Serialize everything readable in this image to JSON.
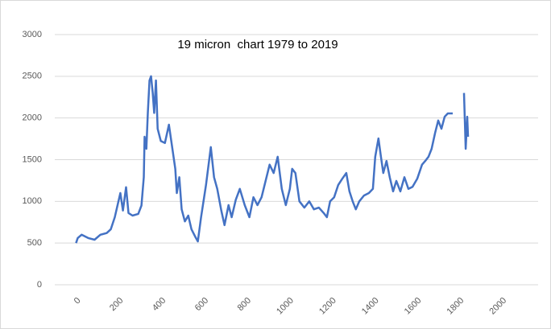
{
  "chart_data": {
    "type": "line",
    "title": "19 micron  chart 1979 to 2019",
    "x": [
      0,
      8,
      26,
      57,
      87,
      114,
      144,
      163,
      182,
      208,
      220,
      235,
      246,
      265,
      292,
      307,
      318,
      322,
      330,
      337,
      345,
      352,
      360,
      367,
      375,
      383,
      398,
      417,
      436,
      447,
      466,
      473,
      485,
      496,
      511,
      527,
      542,
      561,
      572,
      587,
      610,
      633,
      648,
      663,
      682,
      697,
      716,
      731,
      750,
      769,
      792,
      814,
      833,
      852,
      871,
      890,
      909,
      928,
      947,
      966,
      985,
      1004,
      1015,
      1030,
      1049,
      1072,
      1095,
      1117,
      1140,
      1163,
      1178,
      1193,
      1212,
      1231,
      1250,
      1269,
      1284,
      1299,
      1314,
      1330,
      1352,
      1375,
      1394,
      1405,
      1420,
      1432,
      1443,
      1458,
      1473,
      1489,
      1504,
      1523,
      1542,
      1561,
      1580,
      1602,
      1625,
      1640,
      1655,
      1670,
      1686,
      1701,
      1716,
      1731,
      1746,
      1769,
      1790,
      1822,
      1830,
      1837,
      1841
    ],
    "series": [
      {
        "name": "19 micron",
        "color": "#4472c4",
        "values": [
          500,
          560,
          600,
          560,
          540,
          600,
          620,
          665,
          810,
          1100,
          890,
          1170,
          860,
          830,
          850,
          950,
          1290,
          1775,
          1630,
          2060,
          2450,
          2500,
          2300,
          2060,
          2450,
          1870,
          1725,
          1700,
          1920,
          1725,
          1390,
          1100,
          1290,
          905,
          760,
          830,
          665,
          570,
          520,
          810,
          1195,
          1650,
          1290,
          1150,
          890,
          715,
          955,
          810,
          1020,
          1150,
          955,
          810,
          1050,
          955,
          1050,
          1245,
          1440,
          1340,
          1535,
          1150,
          955,
          1150,
          1390,
          1340,
          1000,
          925,
          1000,
          905,
          925,
          860,
          810,
          1000,
          1050,
          1195,
          1270,
          1340,
          1120,
          1000,
          905,
          1000,
          1070,
          1100,
          1150,
          1535,
          1755,
          1535,
          1340,
          1485,
          1290,
          1120,
          1245,
          1120,
          1290,
          1150,
          1175,
          1270,
          1440,
          1485,
          1535,
          1630,
          1820,
          1970,
          1870,
          2015,
          2055,
          2055,
          null,
          2300,
          1630,
          2015,
          1775
        ]
      }
    ],
    "xlim": [
      -100,
      2170
    ],
    "xticks": [
      0,
      200,
      400,
      600,
      800,
      1000,
      1200,
      1400,
      1600,
      1800,
      2000
    ],
    "ylim": [
      0,
      3000
    ],
    "yticks": [
      0,
      500,
      1000,
      1500,
      2000,
      2500,
      3000
    ],
    "grid": true
  }
}
